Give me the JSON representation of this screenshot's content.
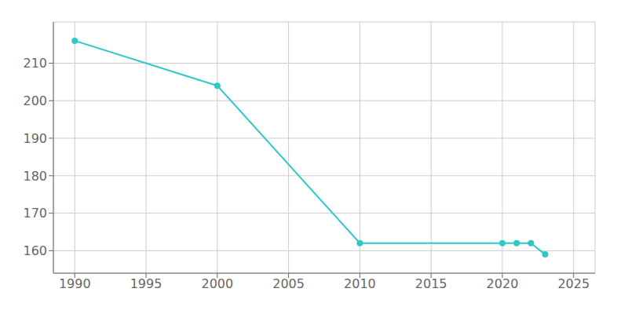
{
  "chart_data": {
    "type": "line",
    "x": [
      1990,
      2000,
      2010,
      2020,
      2021,
      2022,
      2023
    ],
    "values": [
      216,
      204,
      162,
      162,
      162,
      162,
      159
    ],
    "color": "#2ec8c8",
    "marker": "circle",
    "xlim": [
      1988.5,
      2026.5
    ],
    "ylim": [
      154,
      221
    ],
    "xticks": [
      1990,
      1995,
      2000,
      2005,
      2010,
      2015,
      2020,
      2025
    ],
    "yticks": [
      160,
      170,
      180,
      190,
      200,
      210
    ],
    "grid": true
  }
}
